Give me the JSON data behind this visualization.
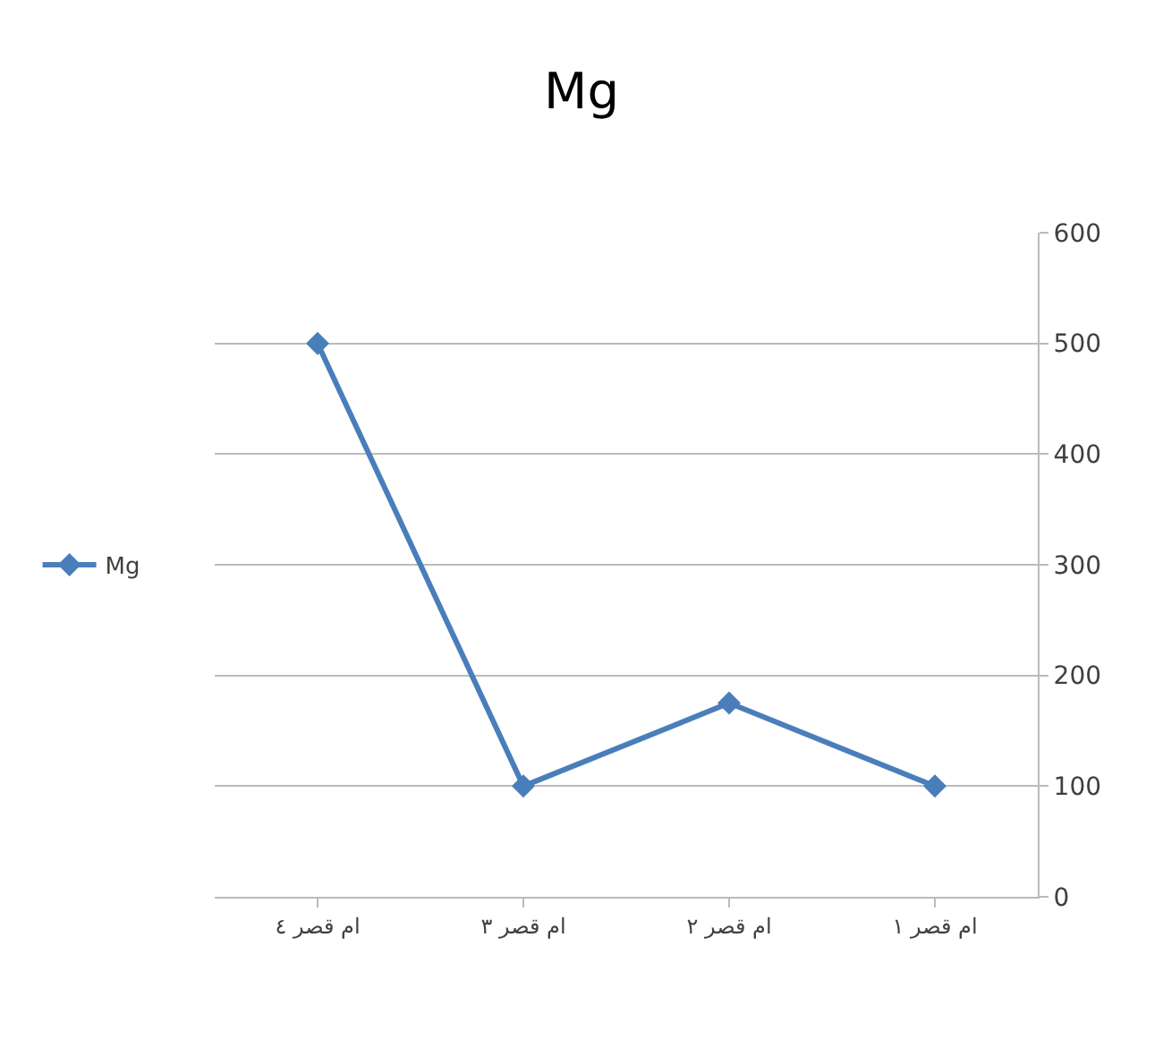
{
  "chart_data": {
    "type": "line",
    "title": "Mg",
    "categories": [
      "ام قصر ٤",
      "ام قصر ٣",
      "ام قصر ٢",
      "ام قصر ١"
    ],
    "series": [
      {
        "name": "Mg",
        "color": "#4a7ebb",
        "values": [
          500,
          100,
          175,
          100
        ]
      }
    ],
    "ylim": [
      0,
      600
    ],
    "yticks": [
      0,
      100,
      200,
      300,
      400,
      500,
      600
    ],
    "grid": "y",
    "legend": "left",
    "marker": "diamond",
    "line_style": "solid"
  }
}
